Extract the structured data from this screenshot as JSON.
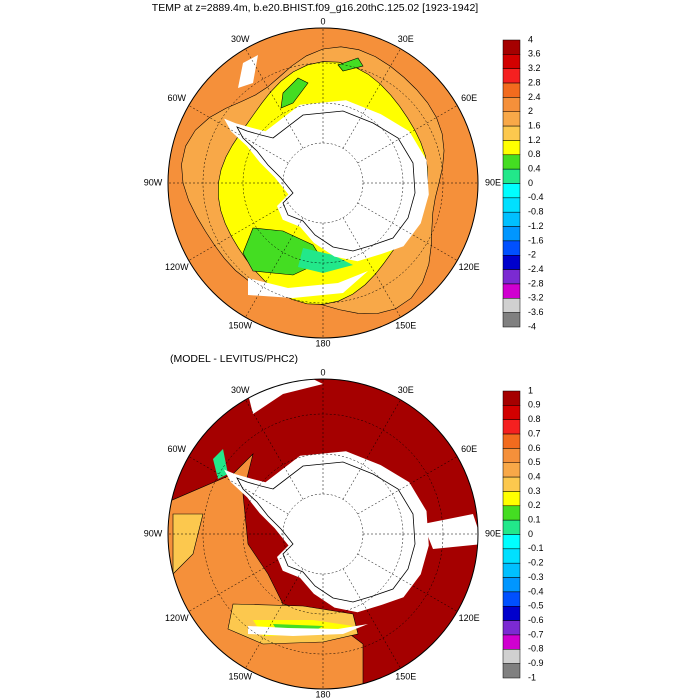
{
  "panels": [
    {
      "title": "TEMP at z=2889.4m, b.e20.BHIST.f09_g16.20thC.125.02 [1923-1942]",
      "longitude_labels": [
        "0",
        "30E",
        "60E",
        "90E",
        "120E",
        "150E",
        "180",
        "150W",
        "120W",
        "90W",
        "60W",
        "30W"
      ],
      "colorbar": {
        "labels": [
          4,
          3.6,
          3.2,
          2.8,
          2.4,
          2,
          1.6,
          1.2,
          0.8,
          0.4,
          0,
          -0.4,
          -0.8,
          -1.2,
          -1.6,
          -2,
          -2.4,
          -2.8,
          -3.2,
          -3.6,
          -4
        ],
        "colors": [
          "#a50000",
          "#d20000",
          "#f52020",
          "#f26b1e",
          "#f5903a",
          "#f8a848",
          "#fcc84e",
          "#ffff00",
          "#44dd22",
          "#22e88a",
          "#00ffff",
          "#00e0ff",
          "#00c0ff",
          "#0096ff",
          "#0050ff",
          "#0000cc",
          "#7b2ad2",
          "#d000d0",
          "#d0d0d0",
          "#808080"
        ]
      }
    },
    {
      "title": "(MODEL - LEVITUS/PHC2)",
      "longitude_labels": [
        "0",
        "30E",
        "60E",
        "90E",
        "120E",
        "150E",
        "180",
        "150W",
        "120W",
        "90W",
        "60W",
        "30W"
      ],
      "colorbar": {
        "labels": [
          1,
          0.9,
          0.8,
          0.7,
          0.6,
          0.5,
          0.4,
          0.3,
          0.2,
          0.1,
          0,
          -0.1,
          -0.2,
          -0.3,
          -0.4,
          -0.5,
          -0.6,
          -0.7,
          -0.8,
          -0.9,
          -1
        ],
        "colors": [
          "#a50000",
          "#d20000",
          "#f52020",
          "#f26b1e",
          "#f5903a",
          "#f8a848",
          "#fcc84e",
          "#ffff00",
          "#44dd22",
          "#22e88a",
          "#00ffff",
          "#00e0ff",
          "#00c0ff",
          "#0096ff",
          "#0050ff",
          "#0000cc",
          "#7b2ad2",
          "#d000d0",
          "#d0d0d0",
          "#808080"
        ]
      }
    }
  ]
}
